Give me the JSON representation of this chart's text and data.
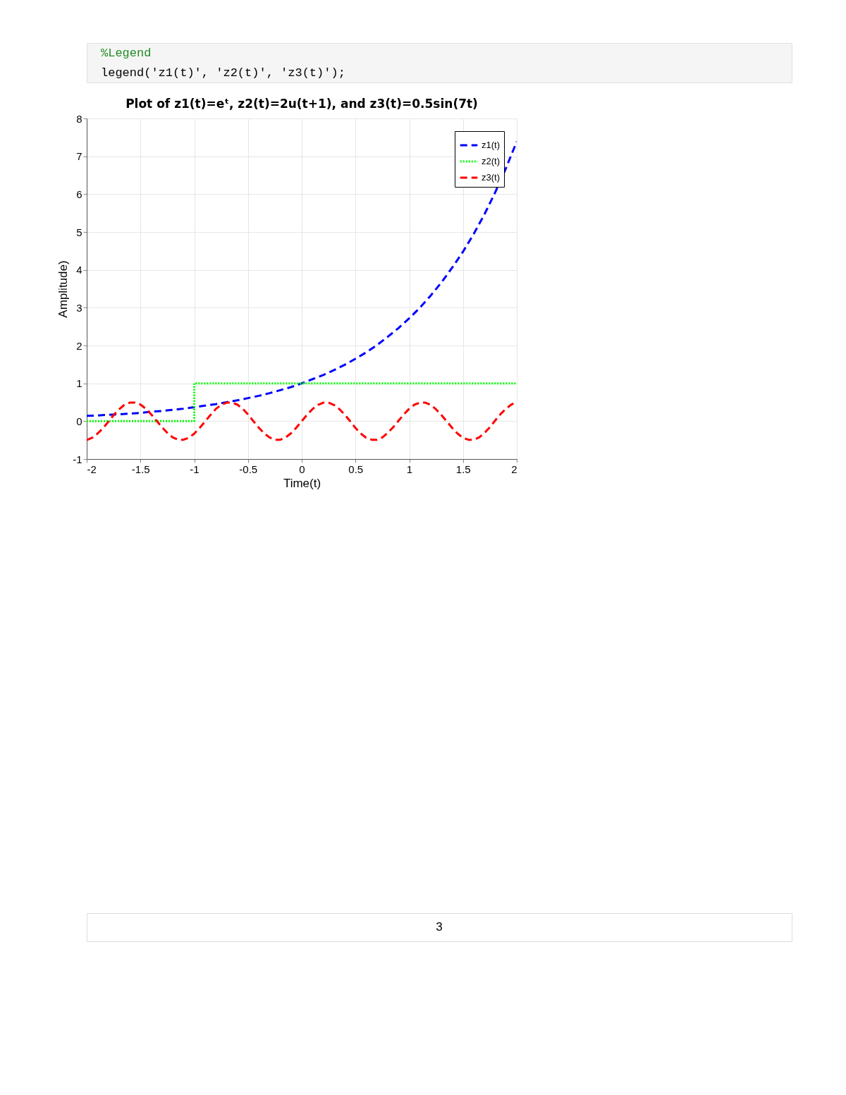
{
  "chart_data": {
    "type": "line",
    "title": "Plot of z1(t)=eᵗ, z2(t)=2u(t+1), and z3(t)=0.5sin(7t)",
    "xlabel": "Time(t)",
    "ylabel": "Amplitude)",
    "annotations": [
      "%Legend",
      "legend('z1(t)', 'z2(t)', 'z3(t)');",
      "3"
    ],
    "xlim": [
      -2,
      2
    ],
    "xticks": [
      -2,
      -1.5,
      -1,
      -0.5,
      0,
      0.5,
      1,
      1.5,
      2
    ],
    "ylim": [
      -1,
      8
    ],
    "yticks": [
      -1,
      0,
      1,
      2,
      3,
      4,
      5,
      6,
      7,
      8
    ],
    "grid": true,
    "legend": "top right",
    "series": [
      {
        "name": "z1(t)",
        "color": "#0000ff",
        "line_style": "dashed",
        "x": [
          -2,
          -1.9,
          -1.8,
          -1.7,
          -1.6,
          -1.5,
          -1.4,
          -1.3,
          -1.2,
          -1.1,
          -1,
          -0.9,
          -0.8,
          -0.7,
          -0.6,
          -0.5,
          -0.4,
          -0.3,
          -0.2,
          -0.1,
          0,
          0.1,
          0.2,
          0.3,
          0.4,
          0.5,
          0.6,
          0.7,
          0.8,
          0.9,
          1,
          1.1,
          1.2,
          1.3,
          1.4,
          1.5,
          1.6,
          1.7,
          1.8,
          1.9,
          2
        ],
        "values": [
          0.14,
          0.15,
          0.17,
          0.18,
          0.2,
          0.22,
          0.25,
          0.27,
          0.3,
          0.33,
          0.37,
          0.41,
          0.45,
          0.5,
          0.55,
          0.61,
          0.67,
          0.74,
          0.82,
          0.9,
          1.0,
          1.11,
          1.22,
          1.35,
          1.49,
          1.65,
          1.82,
          2.01,
          2.23,
          2.46,
          2.72,
          3.0,
          3.32,
          3.67,
          4.06,
          4.48,
          4.95,
          5.47,
          6.05,
          6.69,
          7.39
        ]
      },
      {
        "name": "z2(t)",
        "color": "#00ff00",
        "type": "step",
        "line_style": "dotted",
        "x": [
          -2,
          -1,
          2
        ],
        "values": [
          0,
          1,
          1
        ]
      },
      {
        "name": "z3(t)",
        "color": "#ff0000",
        "line_style": "dashed",
        "x": [
          -2,
          -1.95,
          -1.9,
          -1.85,
          -1.8,
          -1.75,
          -1.7,
          -1.65,
          -1.6,
          -1.55,
          -1.5,
          -1.45,
          -1.4,
          -1.35,
          -1.3,
          -1.25,
          -1.2,
          -1.15,
          -1.1,
          -1.05,
          -1,
          -0.95,
          -0.9,
          -0.85,
          -0.8,
          -0.75,
          -0.7,
          -0.65,
          -0.6,
          -0.55,
          -0.5,
          -0.45,
          -0.4,
          -0.35,
          -0.3,
          -0.25,
          -0.2,
          -0.15,
          -0.1,
          -0.05,
          0,
          0.05,
          0.1,
          0.15,
          0.2,
          0.25,
          0.3,
          0.35,
          0.4,
          0.45,
          0.5,
          0.55,
          0.6,
          0.65,
          0.7,
          0.75,
          0.8,
          0.85,
          0.9,
          0.95,
          1,
          1.05,
          1.1,
          1.15,
          1.2,
          1.25,
          1.3,
          1.35,
          1.4,
          1.45,
          1.5,
          1.55,
          1.6,
          1.65,
          1.7,
          1.75,
          1.8,
          1.85,
          1.9,
          1.95,
          2
        ],
        "values": [
          -0.5,
          -0.44,
          -0.33,
          -0.19,
          -0.02,
          0.16,
          0.31,
          0.43,
          0.49,
          0.49,
          0.44,
          0.33,
          0.18,
          0.01,
          -0.16,
          -0.31,
          -0.43,
          -0.49,
          -0.49,
          -0.44,
          -0.33,
          -0.18,
          -0.01,
          0.16,
          0.32,
          0.43,
          0.49,
          0.49,
          0.44,
          0.33,
          0.18,
          0.0,
          -0.17,
          -0.32,
          -0.43,
          -0.49,
          -0.49,
          -0.43,
          -0.32,
          -0.17,
          0,
          0.17,
          0.32,
          0.43,
          0.49,
          0.49,
          0.43,
          0.32,
          0.17,
          0.0,
          -0.18,
          -0.33,
          -0.44,
          -0.49,
          -0.49,
          -0.43,
          -0.31,
          -0.16,
          0.01,
          0.18,
          0.33,
          0.44,
          0.49,
          0.49,
          0.43,
          0.31,
          0.16,
          -0.01,
          -0.18,
          -0.33,
          -0.44,
          -0.49,
          -0.49,
          -0.43,
          -0.31,
          -0.16,
          0.02,
          0.19,
          0.33,
          0.44,
          0.5
        ]
      }
    ]
  }
}
